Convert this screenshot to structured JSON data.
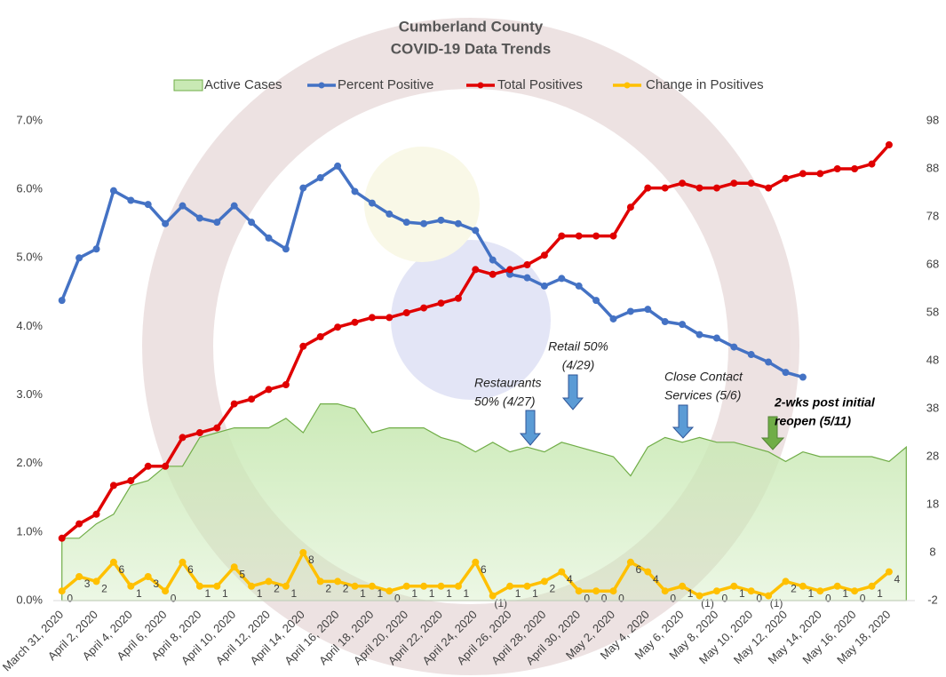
{
  "chart_data": {
    "type": "combo",
    "title": "Cumberland County",
    "subtitle": "COVID-19 Data Trends",
    "categories": [
      "March 31, 2020",
      null,
      "April 2, 2020",
      null,
      "April 4, 2020",
      null,
      "April 6, 2020",
      null,
      "April 8, 2020",
      null,
      "April 10, 2020",
      null,
      "April 12, 2020",
      null,
      "April 14, 2020",
      null,
      "April 16, 2020",
      null,
      "April 18, 2020",
      null,
      "April 20, 2020",
      null,
      "April 22, 2020",
      null,
      "April 24, 2020",
      null,
      "April 26, 2020",
      null,
      "April 28, 2020",
      null,
      "April 30, 2020",
      null,
      "May 2, 2020",
      null,
      "May 4, 2020",
      null,
      "May 6, 2020",
      null,
      "May 8, 2020",
      null,
      "May 10, 2020",
      null,
      "May 12, 2020",
      null,
      "May 14, 2020",
      null,
      "May 16, 2020",
      null,
      "May 18, 2020",
      null
    ],
    "series": [
      {
        "name": "Active Cases",
        "kind": "area",
        "axis": "y2",
        "color": "#70ad47",
        "fill": "#c9e9b4",
        "values": [
          11,
          11,
          14,
          16,
          22,
          23,
          26,
          26,
          32,
          33,
          34,
          34,
          34,
          36,
          33,
          39,
          39,
          38,
          33,
          34,
          34,
          34,
          32,
          31,
          29,
          31,
          29,
          30,
          29,
          31,
          30,
          29,
          28,
          24,
          30,
          32,
          31,
          32,
          31,
          31,
          30,
          29,
          27,
          29,
          28,
          28,
          28,
          28,
          27,
          30
        ]
      },
      {
        "name": "Percent Positive",
        "kind": "line",
        "color": "#4472c4",
        "values": [
          4.38,
          5.0,
          5.13,
          5.98,
          5.84,
          5.78,
          5.5,
          5.76,
          5.58,
          5.52,
          5.76,
          5.52,
          5.29,
          5.13,
          6.02,
          6.17,
          6.34,
          5.97,
          5.8,
          5.64,
          5.52,
          5.5,
          5.55,
          5.5,
          5.4,
          4.97,
          4.76,
          4.71,
          4.59,
          4.7,
          4.59,
          4.38,
          4.11,
          4.22,
          4.25,
          4.07,
          4.03,
          3.88,
          3.83,
          3.7,
          3.59,
          3.48,
          3.33,
          3.26,
          null,
          null,
          null,
          null,
          null,
          null
        ]
      },
      {
        "name": "Total Positives",
        "kind": "line",
        "axis": "y2",
        "color": "#e00000",
        "values": [
          11,
          14,
          16,
          22,
          23,
          26,
          26,
          32,
          33,
          34,
          39,
          40,
          42,
          43,
          51,
          53,
          55,
          56,
          57,
          57,
          58,
          59,
          60,
          61,
          67,
          66,
          67,
          68,
          70,
          74,
          74,
          74,
          74,
          80,
          84,
          84,
          85,
          84,
          84,
          85,
          85,
          84,
          86,
          87,
          87,
          88,
          88,
          89,
          93,
          null
        ]
      },
      {
        "name": "Change in Positives",
        "kind": "line",
        "axis": "y2",
        "color": "#ffc000",
        "values": [
          0,
          3,
          2,
          6,
          1,
          3,
          0,
          6,
          1,
          1,
          5,
          1,
          2,
          1,
          8,
          2,
          2,
          1,
          1,
          0,
          1,
          1,
          1,
          1,
          6,
          -1,
          1,
          1,
          2,
          4,
          0,
          0,
          0,
          6,
          4,
          0,
          1,
          -1,
          0,
          1,
          0,
          -1,
          2,
          1,
          0,
          1,
          0,
          1,
          4,
          null
        ],
        "value_labels": [
          "0",
          "3",
          "2",
          "6",
          "1",
          "3",
          "0",
          "6",
          "1",
          "1",
          "5",
          "1",
          "2",
          "1",
          "8",
          "2",
          "2",
          "1",
          "1",
          "0",
          "1",
          "1",
          "1",
          "1",
          "6",
          "(1)",
          "1",
          "1",
          "2",
          "4",
          "0",
          "0",
          "0",
          "6",
          "4",
          "0",
          "1",
          "(1)",
          "0",
          "1",
          "0",
          "(1)",
          "2",
          "1",
          "0",
          "1",
          "0",
          "1",
          "4",
          null
        ]
      }
    ],
    "ylim": [
      0,
      7
    ],
    "yticks": [
      {
        "value": 0,
        "label": "0.0%"
      },
      {
        "value": 1,
        "label": "1.0%"
      },
      {
        "value": 2,
        "label": "2.0%"
      },
      {
        "value": 3,
        "label": "3.0%"
      },
      {
        "value": 4,
        "label": "4.0%"
      },
      {
        "value": 5,
        "label": "5.0%"
      },
      {
        "value": 6,
        "label": "6.0%"
      },
      {
        "value": 7,
        "label": "7.0%"
      }
    ],
    "y2lim": [
      -2,
      98
    ],
    "y2ticks": [
      -2,
      8,
      18,
      28,
      38,
      48,
      58,
      68,
      78,
      88,
      98
    ],
    "legend": "top",
    "annotations": [
      {
        "lines": [
          "Restaurants",
          "50% (4/27)"
        ]
      },
      {
        "lines": [
          "Retail 50%",
          "(4/29)"
        ]
      },
      {
        "lines": [
          "Close Contact",
          "Services (5/6)"
        ]
      },
      {
        "lines": [
          "2-wks post initial",
          "reopen (5/11)"
        ]
      }
    ]
  }
}
